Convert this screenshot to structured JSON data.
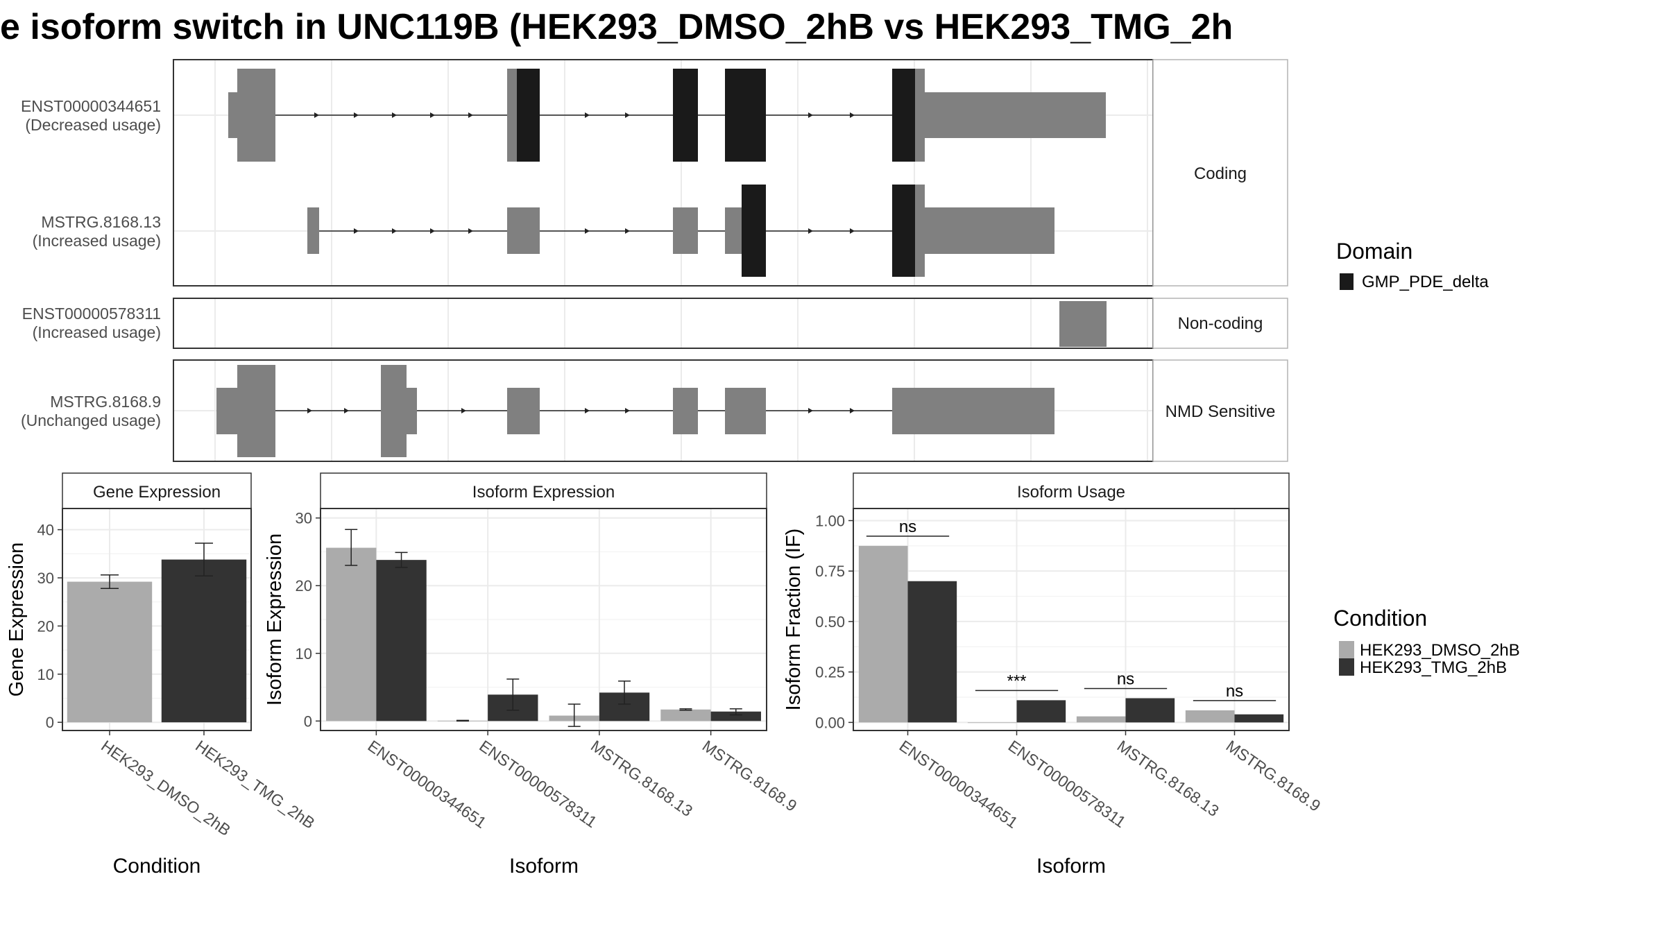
{
  "title": "e isoform switch in UNC119B (HEK293_DMSO_2hB vs HEK293_TMG_2h",
  "colors": {
    "dmso": "#ababab",
    "tmg": "#333333",
    "utr": "#808080",
    "domain": "#1a1a1a",
    "panel_border": "#333333",
    "grid": "#ebebeb"
  },
  "structure": {
    "strips": [
      "Coding",
      "Non-coding",
      "NMD Sensitive"
    ],
    "isoforms": [
      {
        "id": "ENST00000344651",
        "usage": "(Decreased usage)"
      },
      {
        "id": "MSTRG.8168.13",
        "usage": "(Increased usage)"
      },
      {
        "id": "ENST00000578311",
        "usage": "(Increased usage)"
      },
      {
        "id": "MSTRG.8168.9",
        "usage": "(Unchanged usage)"
      }
    ]
  },
  "legend": {
    "domain_title": "Domain",
    "domain_items": [
      "GMP_PDE_delta"
    ],
    "condition_title": "Condition",
    "condition_items": [
      "HEK293_DMSO_2hB",
      "HEK293_TMG_2hB"
    ]
  },
  "chart_data": [
    {
      "type": "bar",
      "title": "Gene Expression",
      "xlabel": "Condition",
      "ylabel": "Gene Expression",
      "ylim": [
        -1.7,
        44.4
      ],
      "yticks": [
        0,
        10,
        20,
        30,
        40
      ],
      "categories": [
        "HEK293_DMSO_2hB",
        "HEK293_TMG_2hB"
      ],
      "values": [
        29.2,
        33.8
      ],
      "errors": [
        [
          27.8,
          30.6
        ],
        [
          30.4,
          37.2
        ]
      ]
    },
    {
      "type": "bar",
      "title": "Isoform Expression",
      "xlabel": "Isoform",
      "ylabel": "Isoform Expression",
      "ylim": [
        -1.4,
        31.4
      ],
      "yticks": [
        0,
        10,
        20,
        30
      ],
      "categories": [
        "ENST00000344651",
        "ENST00000578311",
        "MSTRG.8168.13",
        "MSTRG.8168.9"
      ],
      "series": [
        {
          "name": "HEK293_DMSO_2hB",
          "values": [
            25.6,
            0.05,
            0.8,
            1.7
          ],
          "errors": [
            [
              23.0,
              28.3
            ],
            [
              0,
              0.1
            ],
            [
              -0.8,
              2.5
            ],
            [
              1.6,
              1.8
            ]
          ]
        },
        {
          "name": "HEK293_TMG_2hB",
          "values": [
            23.8,
            3.9,
            4.2,
            1.4
          ],
          "errors": [
            [
              22.7,
              24.9
            ],
            [
              1.6,
              6.2
            ],
            [
              2.5,
              5.9
            ],
            [
              0.9,
              1.8
            ]
          ]
        }
      ]
    },
    {
      "type": "bar",
      "title": "Isoform Usage",
      "xlabel": "Isoform",
      "ylabel": "Isoform Fraction (IF)",
      "ylim": [
        -0.04,
        1.06
      ],
      "yticks": [
        "0.00",
        "0.25",
        "0.50",
        "0.75",
        "1.00"
      ],
      "categories": [
        "ENST00000344651",
        "ENST00000578311",
        "MSTRG.8168.13",
        "MSTRG.8168.9"
      ],
      "series": [
        {
          "name": "HEK293_DMSO_2hB",
          "values": [
            0.875,
            0.0,
            0.03,
            0.06
          ]
        },
        {
          "name": "HEK293_TMG_2hB",
          "values": [
            0.7,
            0.11,
            0.12,
            0.04
          ]
        }
      ],
      "significance": [
        "ns",
        "***",
        "ns",
        "ns"
      ]
    }
  ]
}
